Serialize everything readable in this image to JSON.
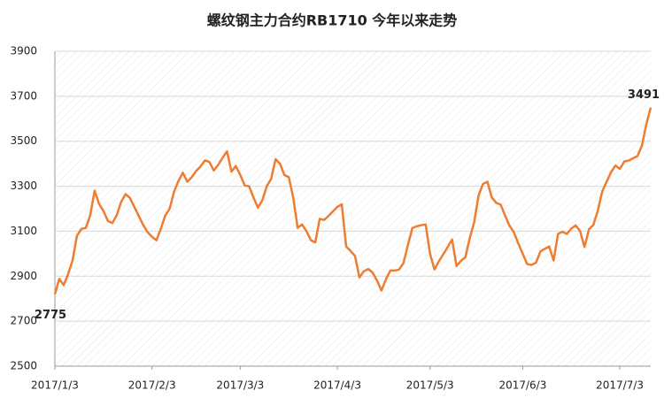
{
  "chart_data": {
    "type": "line",
    "title": "螺纹钢主力合约RB1710  今年以来走势",
    "categories": [
      "2017/1/3",
      null,
      null,
      null,
      null,
      null,
      null,
      null,
      null,
      null,
      null,
      null,
      null,
      null,
      null,
      null,
      null,
      null,
      null,
      null,
      null,
      null,
      "2017/2/3",
      null,
      null,
      null,
      null,
      null,
      null,
      null,
      null,
      null,
      null,
      null,
      null,
      null,
      null,
      null,
      null,
      null,
      null,
      null,
      "2017/3/3",
      null,
      null,
      null,
      null,
      null,
      null,
      null,
      null,
      null,
      null,
      null,
      null,
      null,
      null,
      null,
      null,
      null,
      null,
      null,
      null,
      null,
      "2017/4/3",
      null,
      null,
      null,
      null,
      null,
      null,
      null,
      null,
      null,
      null,
      null,
      null,
      null,
      null,
      null,
      null,
      null,
      null,
      null,
      null,
      "2017/5/3",
      null,
      null,
      null,
      null,
      null,
      null,
      null,
      null,
      null,
      null,
      null,
      null,
      null,
      null,
      null,
      null,
      null,
      null,
      null,
      null,
      "2017/6/3",
      null,
      null,
      null,
      null,
      null,
      null,
      null,
      null,
      null,
      null,
      null,
      null,
      null,
      null,
      null,
      null,
      null,
      null,
      null,
      null,
      null,
      "2017/7/3",
      null,
      null,
      null,
      null,
      null,
      null,
      null
    ],
    "values": [
      2820,
      2888,
      2860,
      2910,
      2970,
      3080,
      3110,
      3115,
      3170,
      3280,
      3222,
      3190,
      3146,
      3136,
      3170,
      3230,
      3265,
      3248,
      3208,
      3168,
      3128,
      3096,
      3075,
      3060,
      3110,
      3170,
      3200,
      3276,
      3324,
      3360,
      3320,
      3340,
      3368,
      3388,
      3415,
      3408,
      3370,
      3395,
      3427,
      3455,
      3365,
      3390,
      3350,
      3304,
      3300,
      3250,
      3205,
      3238,
      3300,
      3333,
      3420,
      3400,
      3350,
      3340,
      3250,
      3115,
      3130,
      3100,
      3060,
      3050,
      3155,
      3150,
      3168,
      3188,
      3208,
      3220,
      3032,
      3012,
      2990,
      2895,
      2922,
      2932,
      2916,
      2880,
      2836,
      2886,
      2925,
      2925,
      2930,
      2960,
      3040,
      3114,
      3122,
      3127,
      3130,
      3000,
      2930,
      2966,
      2998,
      3030,
      3063,
      2945,
      2968,
      2984,
      3070,
      3140,
      3260,
      3310,
      3320,
      3250,
      3226,
      3218,
      3170,
      3125,
      3095,
      3045,
      3000,
      2954,
      2950,
      2960,
      3010,
      3022,
      3032,
      2970,
      3088,
      3098,
      3088,
      3112,
      3126,
      3100,
      3030,
      3108,
      3128,
      3190,
      3276,
      3320,
      3362,
      3392,
      3377,
      3410,
      3414,
      3424,
      3434,
      3480,
      3575,
      3650
    ],
    "color": "#ed7d31",
    "annotations": [
      {
        "text": "3491"
      },
      {
        "text": "2775"
      }
    ],
    "ylim": [
      2500,
      3900
    ],
    "yticks": [
      2500,
      2700,
      2900,
      3100,
      3300,
      3500,
      3700,
      3900
    ],
    "grid": true
  }
}
